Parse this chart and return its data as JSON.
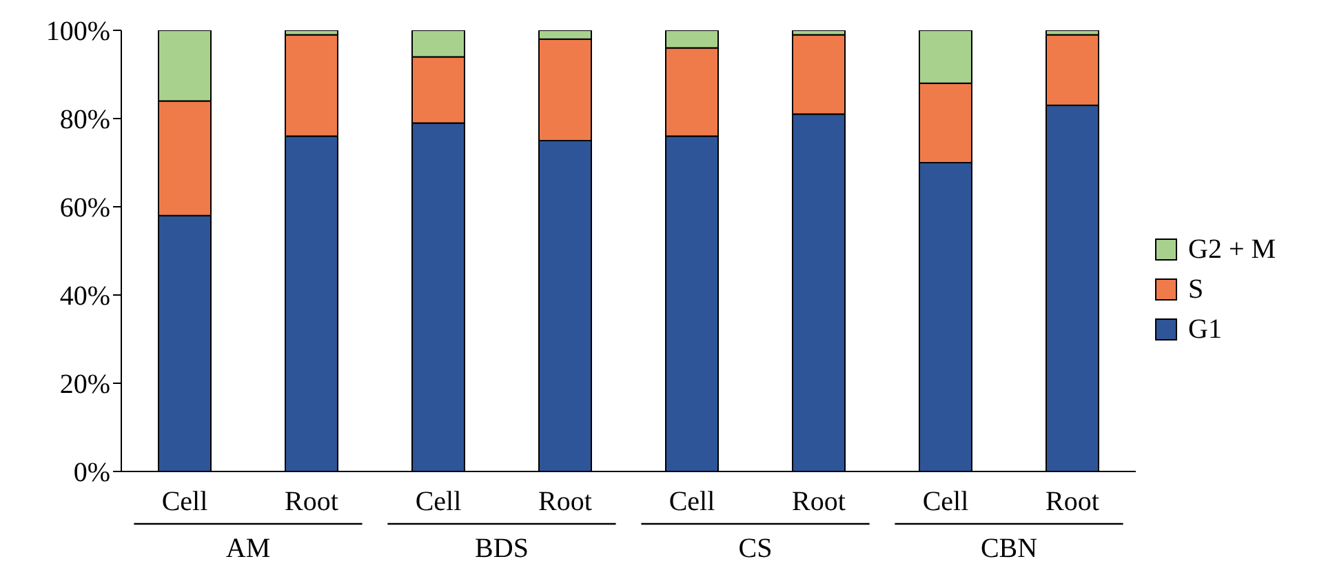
{
  "chart_data": {
    "type": "bar",
    "stacked": true,
    "categories": [
      "Cell",
      "Root",
      "Cell",
      "Root",
      "Cell",
      "Root",
      "Cell",
      "Root"
    ],
    "annotations": [
      "AM",
      "BDS",
      "CS",
      "CBN"
    ],
    "series": [
      {
        "name": "G1",
        "color": "#2e5597",
        "values": [
          58,
          76,
          79,
          75,
          76,
          81,
          70,
          83
        ]
      },
      {
        "name": "S",
        "color": "#f07b4a",
        "values": [
          26,
          23,
          15,
          23,
          20,
          18,
          18,
          16
        ]
      },
      {
        "name": "G2 + M",
        "color": "#a9d18e",
        "values": [
          16,
          1,
          6,
          2,
          4,
          1,
          12,
          1
        ]
      }
    ],
    "ylim": [
      0,
      100
    ],
    "yticks": [
      {
        "value": 0,
        "label": "0%"
      },
      {
        "value": 20,
        "label": "20%"
      },
      {
        "value": 40,
        "label": "40%"
      },
      {
        "value": 60,
        "label": "60%"
      },
      {
        "value": 80,
        "label": "80%"
      },
      {
        "value": 100,
        "label": "100%"
      }
    ],
    "grid": false,
    "legend": "right"
  }
}
